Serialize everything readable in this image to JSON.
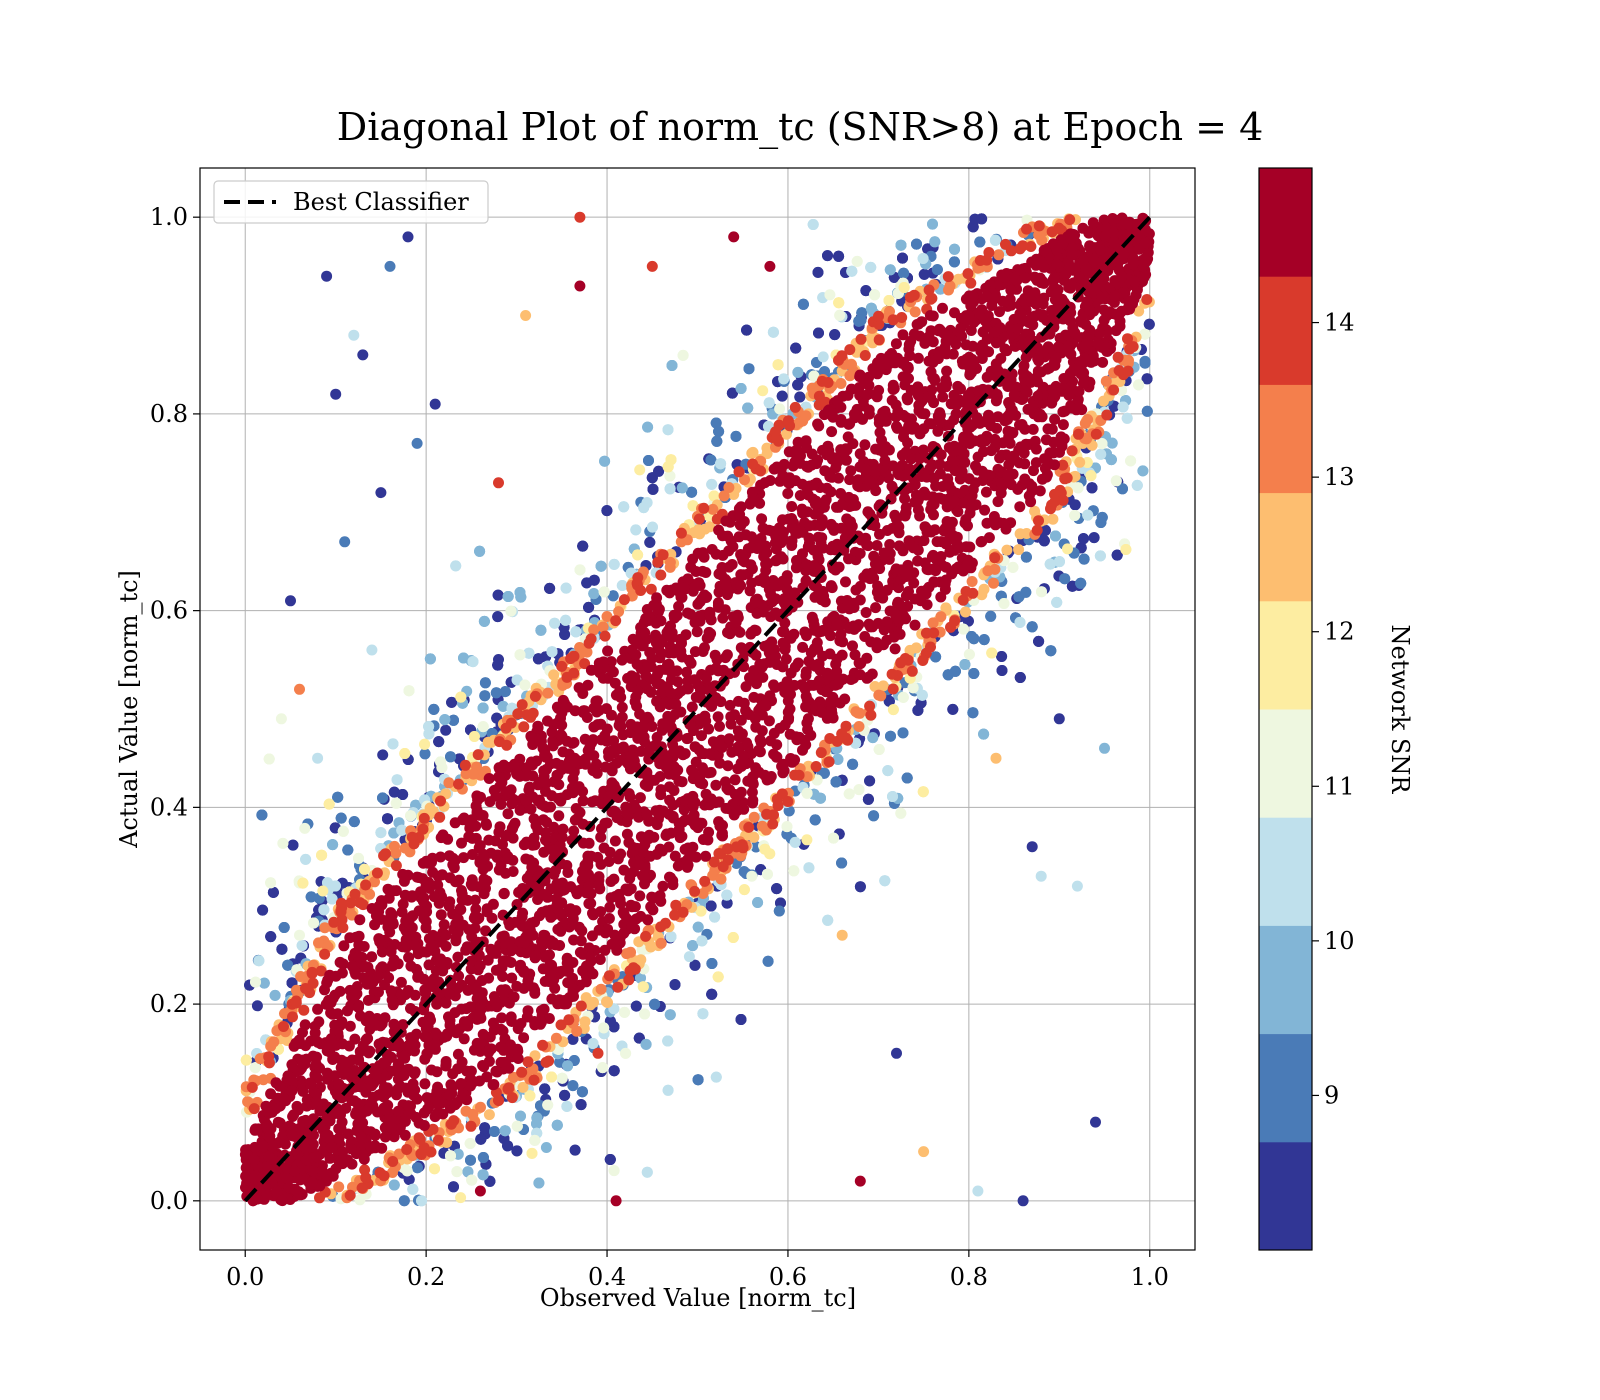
{
  "chart_data": {
    "type": "scatter",
    "title": "Diagonal Plot of norm_tc (SNR>8) at Epoch = 4",
    "xlabel": "Observed Value [norm_tc]",
    "ylabel": "Actual Value [norm_tc]",
    "xlim": [
      -0.05,
      1.05
    ],
    "ylim": [
      -0.05,
      1.05
    ],
    "xticks": [
      "0.0",
      "0.2",
      "0.4",
      "0.6",
      "0.8",
      "1.0"
    ],
    "yticks": [
      "0.0",
      "0.2",
      "0.4",
      "0.6",
      "0.8",
      "1.0"
    ],
    "grid": true,
    "legend": {
      "placement": "upper-left",
      "label": "Best Classifier"
    },
    "reference_line": {
      "name": "Best Classifier",
      "x": [
        0,
        1
      ],
      "y": [
        0,
        1
      ],
      "style": "dashed",
      "color": "#000000"
    },
    "colorbar": {
      "label": "Network SNR",
      "range": [
        8,
        15
      ],
      "tick_values": [
        9,
        10,
        11,
        12,
        13,
        14
      ],
      "tick_labels": [
        "9",
        "10",
        "11",
        "12",
        "13",
        "14"
      ],
      "bins": [
        {
          "from": 8.0,
          "to": 8.7,
          "color": "#313695"
        },
        {
          "from": 8.7,
          "to": 9.4,
          "color": "#4a7bb7"
        },
        {
          "from": 9.4,
          "to": 10.1,
          "color": "#82b5d6"
        },
        {
          "from": 10.1,
          "to": 10.8,
          "color": "#bfe0ec"
        },
        {
          "from": 10.8,
          "to": 11.5,
          "color": "#eef7e0"
        },
        {
          "from": 11.5,
          "to": 12.2,
          "color": "#fdeda1"
        },
        {
          "from": 12.2,
          "to": 12.9,
          "color": "#fdbe70"
        },
        {
          "from": 12.9,
          "to": 13.6,
          "color": "#f47f4c"
        },
        {
          "from": 13.6,
          "to": 14.3,
          "color": "#d93a2c"
        },
        {
          "from": 14.3,
          "to": 15.0,
          "color": "#a50026"
        }
      ]
    },
    "series": [
      {
        "color_value": "Network SNR",
        "description_value": "dense band of points around y = x; high-SNR points lie near diagonal, lower-SNR points scatter farther",
        "band_halfwidth_high_snr": 0.16,
        "points_sample": [
          [
            0.09,
            0.94,
            8.3
          ],
          [
            0.13,
            0.86,
            8.4
          ],
          [
            0.1,
            0.82,
            8.5
          ],
          [
            0.18,
            0.98,
            8.6
          ],
          [
            0.16,
            0.95,
            9.0
          ],
          [
            0.12,
            0.88,
            10.5
          ],
          [
            0.21,
            0.81,
            8.3
          ],
          [
            0.19,
            0.77,
            9.2
          ],
          [
            0.05,
            0.61,
            8.5
          ],
          [
            0.06,
            0.52,
            13.2
          ],
          [
            0.04,
            0.49,
            10.9
          ],
          [
            0.08,
            0.45,
            10.6
          ],
          [
            0.14,
            0.56,
            10.4
          ],
          [
            0.15,
            0.72,
            8.4
          ],
          [
            0.11,
            0.67,
            9.1
          ],
          [
            0.28,
            0.73,
            14.2
          ],
          [
            0.31,
            0.9,
            12.8
          ],
          [
            0.37,
            0.93,
            14.6
          ],
          [
            0.37,
            1.0,
            13.8
          ],
          [
            0.45,
            0.95,
            14.0
          ],
          [
            0.54,
            0.98,
            14.5
          ],
          [
            0.58,
            0.95,
            14.7
          ],
          [
            0.56,
            0.33,
            10.9
          ],
          [
            0.66,
            0.27,
            12.4
          ],
          [
            0.75,
            0.05,
            12.6
          ],
          [
            0.83,
            0.45,
            12.6
          ],
          [
            0.92,
            0.32,
            10.2
          ],
          [
            0.95,
            0.46,
            9.7
          ],
          [
            0.9,
            0.49,
            8.3
          ],
          [
            0.87,
            0.36,
            8.4
          ],
          [
            0.94,
            0.08,
            8.4
          ],
          [
            0.88,
            0.33,
            10.3
          ],
          [
            0.86,
            0.0,
            8.5
          ],
          [
            0.81,
            0.01,
            10.1
          ],
          [
            0.72,
            0.15,
            8.4
          ],
          [
            0.68,
            0.02,
            14.4
          ],
          [
            0.41,
            0.0,
            14.6
          ],
          [
            0.26,
            0.01,
            14.4
          ],
          [
            0.39,
            0.15,
            14.0
          ],
          [
            0.06,
            0.27,
            10.8
          ]
        ]
      }
    ]
  }
}
